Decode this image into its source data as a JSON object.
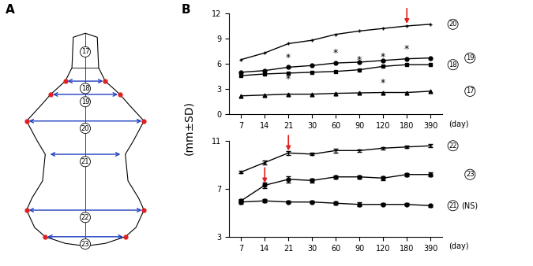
{
  "panel_labels": [
    "A",
    "B"
  ],
  "diagram": {
    "measurements": [
      "17",
      "18",
      "19",
      "20",
      "21",
      "22",
      "23"
    ]
  },
  "chart_data": [
    {
      "type": "line",
      "ylabel": "(mm±SD)",
      "xlabel": "(day)",
      "categories": [
        "7",
        "14",
        "21",
        "30",
        "60",
        "90",
        "120",
        "180",
        "390"
      ],
      "ylim": [
        0,
        12
      ],
      "yticks": [
        0,
        3,
        6,
        9,
        12
      ],
      "series": [
        {
          "name": "20",
          "color": "#000000",
          "marker": "plus",
          "values": [
            6.5,
            7.3,
            8.4,
            8.8,
            9.5,
            9.9,
            10.2,
            10.5,
            10.7
          ]
        },
        {
          "name": "19",
          "color": "#000000",
          "marker": "circle",
          "values": [
            5.0,
            5.2,
            5.6,
            5.8,
            6.1,
            6.2,
            6.4,
            6.6,
            6.7
          ]
        },
        {
          "name": "18",
          "color": "#000000",
          "marker": "square",
          "values": [
            4.6,
            4.8,
            4.9,
            5.0,
            5.1,
            5.3,
            5.7,
            5.9,
            5.9
          ]
        },
        {
          "name": "17",
          "color": "#000000",
          "marker": "triangle",
          "values": [
            2.2,
            2.3,
            2.4,
            2.4,
            2.5,
            2.55,
            2.6,
            2.6,
            2.75
          ]
        }
      ],
      "significance": [
        {
          "series": "19",
          "category": "21",
          "label": "*",
          "position": "above"
        },
        {
          "series": "18",
          "category": "21",
          "label": "*",
          "position": "below"
        },
        {
          "series": "19",
          "category": "60",
          "label": "*",
          "position": "above"
        },
        {
          "series": "18",
          "category": "90",
          "label": "*",
          "position": "above"
        },
        {
          "series": "18",
          "category": "120",
          "label": "*",
          "position": "above"
        },
        {
          "series": "17",
          "category": "120",
          "label": "*",
          "position": "above"
        },
        {
          "series": "19",
          "category": "180",
          "label": "*",
          "position": "above"
        }
      ],
      "arrows": [
        {
          "series": "20",
          "category": "180",
          "color": "#e02020"
        }
      ]
    },
    {
      "type": "line",
      "xlabel": "(day)",
      "categories": [
        "7",
        "14",
        "21",
        "30",
        "60",
        "90",
        "120",
        "180",
        "390"
      ],
      "ylim": [
        3,
        11
      ],
      "yticks": [
        3,
        7,
        11
      ],
      "series": [
        {
          "name": "22",
          "color": "#000000",
          "marker": "plus",
          "values": [
            8.4,
            9.2,
            10.0,
            9.9,
            10.2,
            10.2,
            10.4,
            10.5,
            10.6
          ],
          "errors": [
            0.1,
            0.15,
            0.15,
            0.1,
            0.15,
            0.1,
            0.1,
            0.1,
            0.12
          ]
        },
        {
          "name": "23",
          "color": "#000000",
          "marker": "circle",
          "values": [
            6.0,
            7.3,
            7.8,
            7.7,
            8.0,
            8.0,
            7.9,
            8.2,
            8.2
          ],
          "errors": [
            0.15,
            0.25,
            0.25,
            0.15,
            0.12,
            0.12,
            0.15,
            0.12,
            0.15
          ]
        },
        {
          "name": "21",
          "color": "#000000",
          "marker": "circle",
          "note": "(NS)",
          "values": [
            5.9,
            6.0,
            5.9,
            5.9,
            5.8,
            5.7,
            5.7,
            5.7,
            5.6
          ],
          "errors": [
            0.15,
            0.12,
            0.1,
            0.1,
            0.12,
            0.15,
            0.1,
            0.1,
            0.1
          ]
        }
      ],
      "arrows": [
        {
          "series": "22",
          "category": "21",
          "color": "#e02020"
        },
        {
          "series": "23",
          "category": "14",
          "color": "#e02020"
        }
      ]
    }
  ]
}
